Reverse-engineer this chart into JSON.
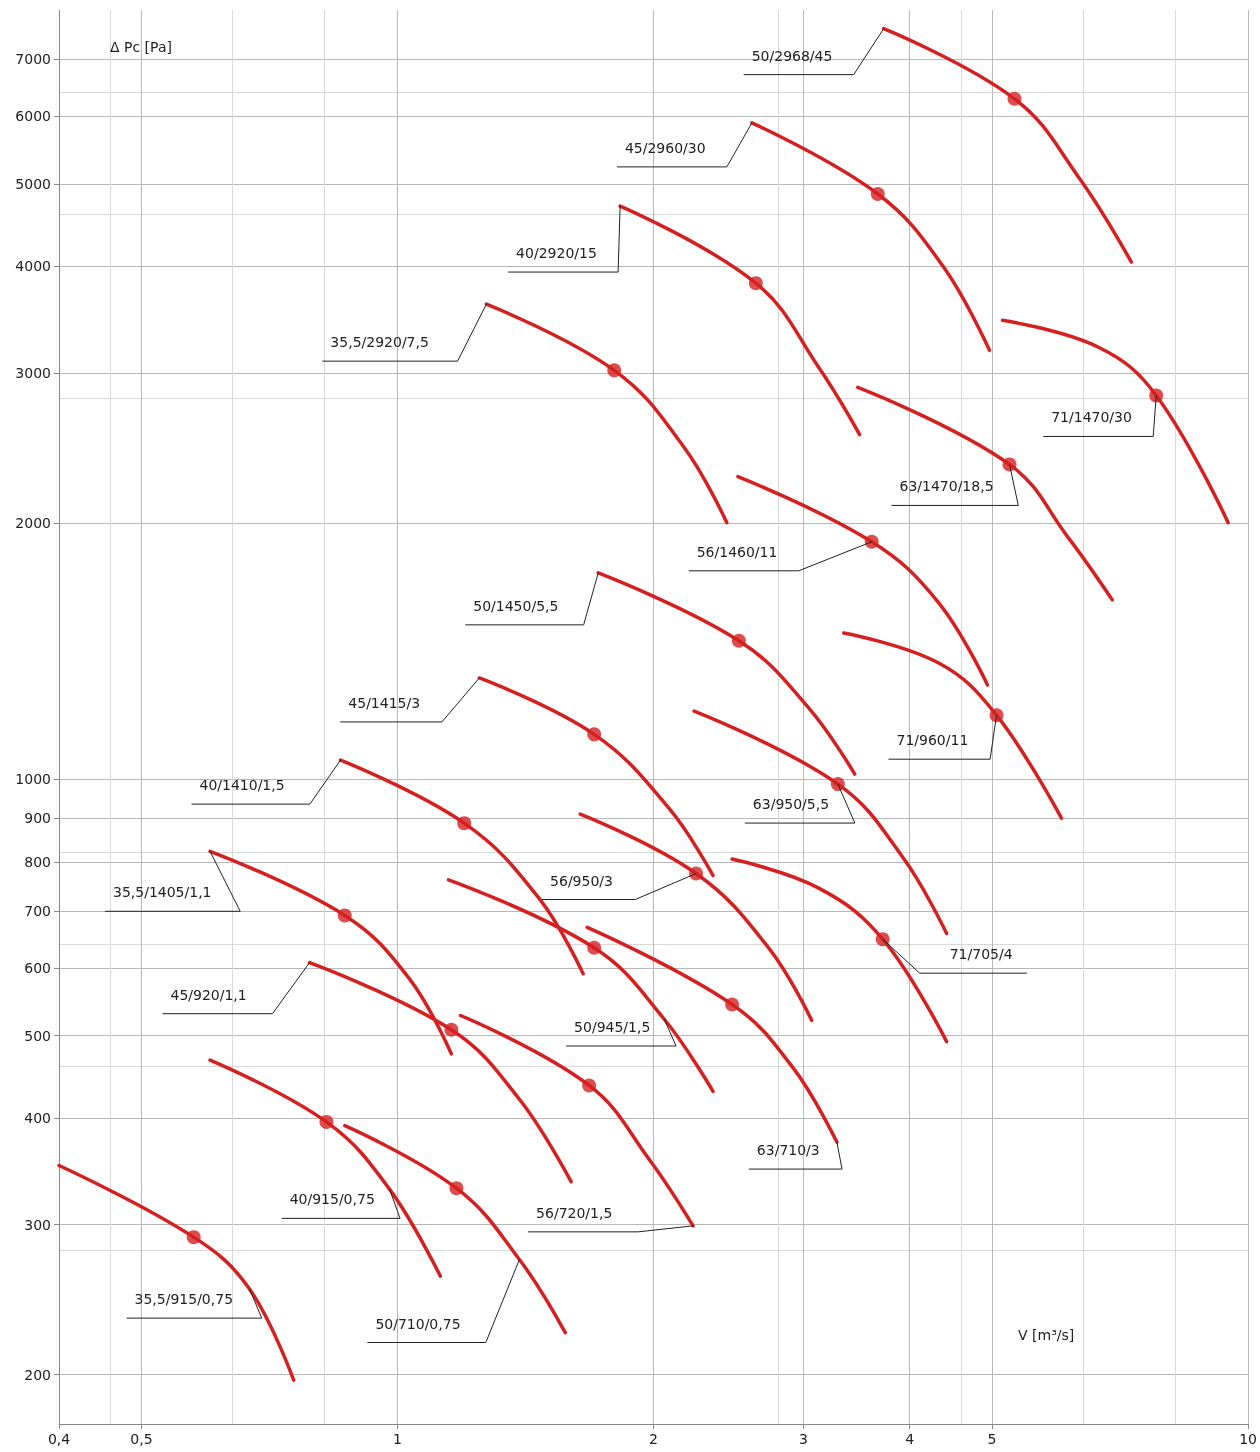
{
  "chart_data": {
    "type": "line",
    "xlabel": "V [m³/s]",
    "ylabel": "Δ Pc [Pa]",
    "log": "xy",
    "grid": true,
    "marker": "none",
    "line_style": "solid",
    "xlim": [
      0.4,
      10
    ],
    "xticks": [
      {
        "value": 0.4,
        "label": "0,4"
      },
      {
        "value": 0.5,
        "label": "0,5"
      },
      1,
      2,
      3,
      4,
      5,
      10
    ],
    "ylim": [
      175,
      8000
    ],
    "yticks": [
      200,
      300,
      400,
      500,
      600,
      700,
      800,
      900,
      1000,
      2000,
      3000,
      4000,
      5000,
      6000,
      7000
    ],
    "series": [
      {
        "name": "35,5/915/0,75",
        "color": "#d42020",
        "x": [
          0.4,
          0.576,
          0.67,
          0.755
        ],
        "values": [
          352,
          290,
          252,
          197
        ]
      },
      {
        "name": "40/915/0,75",
        "color": "#d42020",
        "x": [
          0.602,
          0.825,
          0.979,
          1.123
        ],
        "values": [
          468,
          396,
          330,
          261
        ]
      },
      {
        "name": "50/710/0,75",
        "color": "#d42020",
        "x": [
          0.867,
          1.173,
          1.391,
          1.575
        ],
        "values": [
          392,
          331,
          273,
          224
        ]
      },
      {
        "name": "45/920/1,1",
        "color": "#d42020",
        "x": [
          0.788,
          1.157,
          1.391,
          1.6
        ],
        "values": [
          609,
          508,
          421,
          337
        ]
      },
      {
        "name": "35,5/1405/1,1",
        "color": "#d42020",
        "x": [
          0.602,
          0.867,
          1.033,
          1.157
        ],
        "values": [
          823,
          692,
          583,
          476
        ]
      },
      {
        "name": "56/720/1,5",
        "color": "#d42020",
        "x": [
          1.186,
          1.68,
          1.976,
          2.226
        ],
        "values": [
          528,
          437,
          358,
          299
        ]
      },
      {
        "name": "50/945/1,5",
        "color": "#d42020",
        "x": [
          1.148,
          1.703,
          2.058,
          2.349
        ],
        "values": [
          762,
          634,
          523,
          430
        ]
      },
      {
        "name": "40/1410/1,5",
        "color": "#d42020",
        "x": [
          0.857,
          1.198,
          1.468,
          1.653
        ],
        "values": [
          1053,
          888,
          724,
          591
        ]
      },
      {
        "name": "63/710/3",
        "color": "#d42020",
        "x": [
          1.671,
          2.474,
          2.924,
          3.285
        ],
        "values": [
          670,
          544,
          457,
          375
        ]
      },
      {
        "name": "56/950/3",
        "color": "#d42020",
        "x": [
          1.64,
          2.244,
          2.734,
          3.069
        ],
        "values": [
          910,
          775,
          633,
          521
        ]
      },
      {
        "name": "45/1415/3",
        "color": "#d42020",
        "x": [
          1.248,
          1.703,
          2.086,
          2.349
        ],
        "values": [
          1315,
          1129,
          924,
          771
        ]
      },
      {
        "name": "71/705/4",
        "color": "#d42020",
        "x": [
          2.474,
          3.128,
          3.719,
          4.422
        ],
        "values": [
          806,
          745,
          649,
          492
        ]
      },
      {
        "name": "63/950/5,5",
        "color": "#d42020",
        "x": [
          2.232,
          3.294,
          3.936,
          4.422
        ],
        "values": [
          1202,
          987,
          807,
          659
        ]
      },
      {
        "name": "50/1450/5,5",
        "color": "#d42020",
        "x": [
          1.722,
          2.52,
          3.045,
          3.448
        ],
        "values": [
          1747,
          1454,
          1212,
          1014
        ]
      },
      {
        "name": "71/960/11",
        "color": "#d42020",
        "x": [
          3.347,
          4.328,
          5.061,
          6.034
        ],
        "values": [
          1485,
          1369,
          1189,
          900
        ]
      },
      {
        "name": "56/1460/11",
        "color": "#d42020",
        "x": [
          2.513,
          3.61,
          4.328,
          4.939
        ],
        "values": [
          2266,
          1900,
          1611,
          1290
        ]
      },
      {
        "name": "35,5/2920/7,5",
        "color": "#d42020",
        "x": [
          1.272,
          1.798,
          2.173,
          2.439
        ],
        "values": [
          3612,
          3020,
          2452,
          2001
        ]
      },
      {
        "name": "40/2920/15",
        "color": "#d42020",
        "x": [
          1.827,
          2.638,
          3.128,
          3.494
        ],
        "values": [
          4709,
          3823,
          3044,
          2539
        ]
      },
      {
        "name": "45/2960/30",
        "color": "#d42020",
        "x": [
          2.61,
          3.67,
          4.385,
          4.966
        ],
        "values": [
          5896,
          4865,
          3993,
          3188
        ]
      },
      {
        "name": "50/2968/45",
        "color": "#d42020",
        "x": [
          3.729,
          5.313,
          6.318,
          7.291
        ],
        "values": [
          7607,
          6293,
          5094,
          4047
        ]
      },
      {
        "name": "63/1470/18,5",
        "color": "#d42020",
        "x": [
          3.476,
          5.242,
          6.149,
          6.923
        ],
        "values": [
          2884,
          2342,
          1920,
          1624
        ]
      },
      {
        "name": "71/1470/30",
        "color": "#d42020",
        "x": [
          5.144,
          6.669,
          7.798,
          9.474
        ],
        "values": [
          3458,
          3215,
          2822,
          2001
        ]
      },
      {
        "type": "scatter",
        "marker": "circle",
        "color": "#d42020",
        "x": [
          0.576,
          0.825,
          1.173,
          1.157,
          0.867,
          1.68,
          1.703,
          1.198,
          2.474,
          2.244,
          1.703,
          3.719,
          3.294,
          2.52,
          5.061,
          3.61,
          1.798,
          2.638,
          3.67,
          5.313,
          5.242,
          7.798
        ],
        "values": [
          290,
          396,
          331,
          508,
          692,
          437,
          634,
          888,
          544,
          775,
          1129,
          649,
          987,
          1454,
          1189,
          1900,
          3020,
          3823,
          4865,
          6293,
          2342,
          2822
        ]
      }
    ]
  }
}
